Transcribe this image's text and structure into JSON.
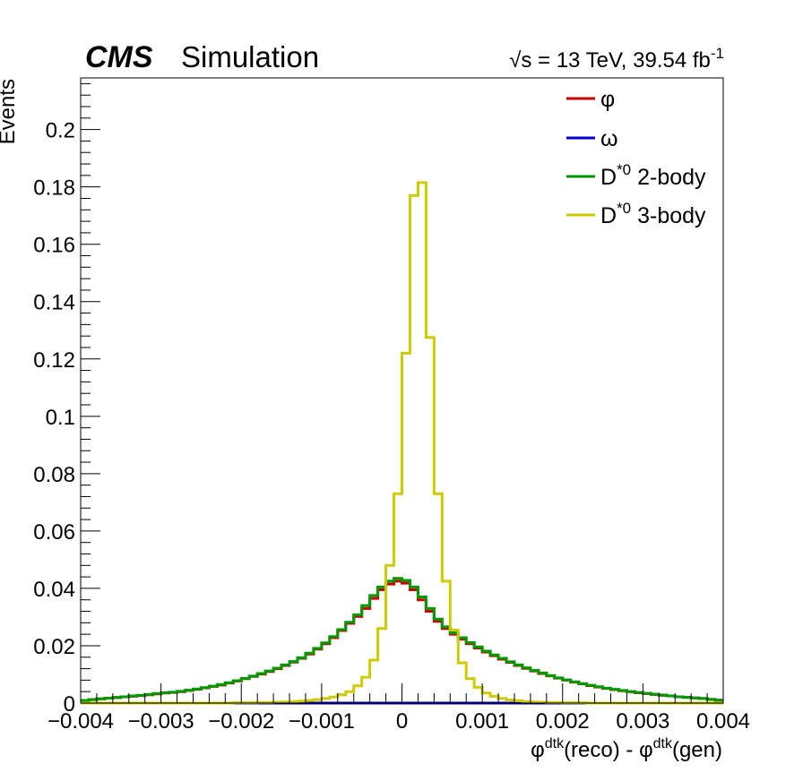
{
  "header": {
    "cms_label": "CMS",
    "sim_label": "Simulation",
    "lumi_sqrt": "√s",
    "lumi_main": " = 13 TeV, 39.54 fb",
    "lumi_exp": "-1"
  },
  "chart_data": {
    "type": "line",
    "title": "",
    "xlabel": {
      "p1": "φ",
      "s1": "dtk",
      "p2": "(reco) - φ",
      "s2": "dtk",
      "p3": "(gen)"
    },
    "ylabel": "Events",
    "xlim": [
      -0.004,
      0.004
    ],
    "ylim": [
      0,
      0.218
    ],
    "x_ticks": [
      -0.004,
      -0.003,
      -0.002,
      -0.001,
      0,
      0.001,
      0.002,
      0.003,
      0.004
    ],
    "x_tick_labels": [
      "−0.004",
      "−0.003",
      "−0.002",
      "−0.001",
      "0",
      "0.001",
      "0.002",
      "0.003",
      "0.004"
    ],
    "y_ticks": [
      0,
      0.02,
      0.04,
      0.06,
      0.08,
      0.1,
      0.12,
      0.14,
      0.16,
      0.18,
      0.2
    ],
    "y_tick_labels": [
      "0",
      "0.02",
      "0.04",
      "0.06",
      "0.08",
      "0.1",
      "0.12",
      "0.14",
      "0.16",
      "0.18",
      "0.2"
    ],
    "grid": false,
    "legend_position": "top-right",
    "histogram": true,
    "bins": 80,
    "bin_width": 0.0001,
    "series": [
      {
        "name": "φ",
        "sup": "",
        "suffix": "",
        "color": "#cc0000",
        "values": [
          0.0009,
          0.0012,
          0.0015,
          0.0017,
          0.0019,
          0.0022,
          0.0024,
          0.0026,
          0.0029,
          0.0032,
          0.0035,
          0.0037,
          0.004,
          0.0044,
          0.0048,
          0.0053,
          0.0058,
          0.0063,
          0.007,
          0.0077,
          0.0085,
          0.0093,
          0.0101,
          0.011,
          0.012,
          0.0131,
          0.0143,
          0.0156,
          0.0171,
          0.0188,
          0.0207,
          0.0228,
          0.0253,
          0.0278,
          0.0302,
          0.033,
          0.0365,
          0.0395,
          0.0415,
          0.0425,
          0.0418,
          0.0395,
          0.036,
          0.032,
          0.0285,
          0.026,
          0.024,
          0.0223,
          0.0207,
          0.0192,
          0.0178,
          0.0165,
          0.0153,
          0.0142,
          0.0131,
          0.0121,
          0.0112,
          0.0103,
          0.0095,
          0.0087,
          0.008,
          0.0073,
          0.0067,
          0.0061,
          0.0056,
          0.0051,
          0.0047,
          0.0043,
          0.004,
          0.0036,
          0.0033,
          0.003,
          0.0027,
          0.0025,
          0.0022,
          0.002,
          0.0018,
          0.0016,
          0.0013,
          0.001
        ]
      },
      {
        "name": "ω",
        "sup": "",
        "suffix": "",
        "color": "#0000cc",
        "values": [
          0,
          0,
          0,
          0,
          0,
          0,
          0,
          0,
          0,
          0,
          0,
          0,
          0,
          0,
          0,
          0,
          0,
          0,
          0,
          0,
          0,
          0,
          0,
          0,
          0,
          0,
          0,
          0,
          0,
          0,
          0,
          0,
          0,
          0,
          0,
          0,
          0,
          0,
          0,
          0,
          0,
          0,
          0,
          0,
          0,
          0,
          0,
          0,
          0,
          0,
          0,
          0,
          0,
          0,
          0,
          0,
          0,
          0,
          0,
          0,
          0,
          0,
          0,
          0,
          0,
          0,
          0,
          0,
          0,
          0,
          0,
          0,
          0,
          0,
          0,
          0,
          0,
          0,
          0,
          0
        ]
      },
      {
        "name": "D",
        "sup": "*0",
        "suffix": " 2-body",
        "color": "#009900",
        "values": [
          0.0009,
          0.0012,
          0.0015,
          0.0017,
          0.002,
          0.0022,
          0.0025,
          0.0027,
          0.003,
          0.0033,
          0.0036,
          0.0038,
          0.0041,
          0.0045,
          0.0049,
          0.0054,
          0.0059,
          0.0065,
          0.0071,
          0.0078,
          0.0086,
          0.0094,
          0.0103,
          0.0112,
          0.0122,
          0.0133,
          0.0145,
          0.0158,
          0.0174,
          0.0191,
          0.021,
          0.0232,
          0.0256,
          0.0282,
          0.0308,
          0.034,
          0.0375,
          0.0405,
          0.0425,
          0.0435,
          0.0428,
          0.0405,
          0.037,
          0.033,
          0.0293,
          0.0266,
          0.0245,
          0.0228,
          0.0211,
          0.0196,
          0.0181,
          0.0168,
          0.0156,
          0.0144,
          0.0133,
          0.0123,
          0.0114,
          0.0105,
          0.0096,
          0.0088,
          0.0081,
          0.0074,
          0.0068,
          0.0062,
          0.0057,
          0.0052,
          0.0048,
          0.0044,
          0.004,
          0.0037,
          0.0034,
          0.0031,
          0.0028,
          0.0025,
          0.0022,
          0.002,
          0.0018,
          0.0016,
          0.0013,
          0.001
        ]
      },
      {
        "name": "D",
        "sup": "*0",
        "suffix": " 3-body",
        "color": "#cccc00",
        "values": [
          0,
          0,
          0,
          0,
          0,
          0,
          0,
          0,
          0,
          0,
          0,
          0,
          0,
          0,
          0,
          0,
          0,
          0,
          0,
          0.0001,
          0.0001,
          0.0001,
          0.0002,
          0.0002,
          0.0003,
          0.0004,
          0.0005,
          0.0007,
          0.0009,
          0.0012,
          0.0016,
          0.0021,
          0.0029,
          0.004,
          0.006,
          0.009,
          0.015,
          0.026,
          0.048,
          0.073,
          0.122,
          0.177,
          0.1815,
          0.1275,
          0.073,
          0.0425,
          0.0255,
          0.014,
          0.0085,
          0.0055,
          0.0035,
          0.0024,
          0.0016,
          0.0011,
          0.0008,
          0.0005,
          0.0004,
          0.0003,
          0.0002,
          0.0002,
          0.0001,
          0.0001,
          0.0001,
          0,
          0,
          0,
          0,
          0,
          0,
          0,
          0,
          0,
          0,
          0,
          0,
          0,
          0,
          0,
          0,
          0
        ]
      }
    ]
  }
}
